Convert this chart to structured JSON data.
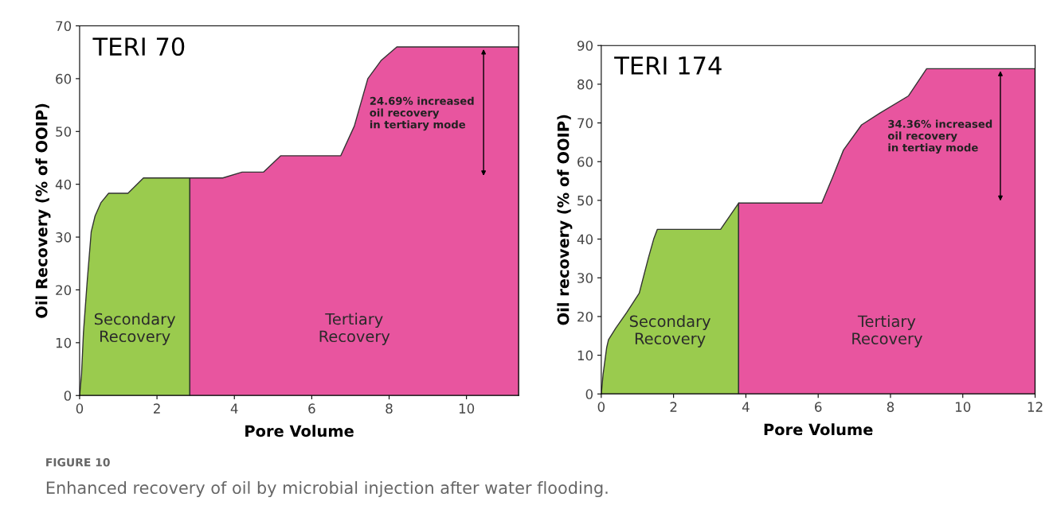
{
  "chart_data": [
    {
      "type": "area",
      "title": "TERI 70",
      "xlabel": "Pore Volume",
      "ylabel": "Oil Recovery (% of OOIP)",
      "xlim": [
        0,
        11.35
      ],
      "ylim": [
        0,
        70
      ],
      "xticks": [
        0,
        2,
        4,
        6,
        8,
        10
      ],
      "yticks": [
        0,
        10,
        20,
        30,
        40,
        50,
        60,
        70
      ],
      "grid": false,
      "series": [
        {
          "name": "Secondary\nRecovery",
          "color": "#9acb4e",
          "x": [
            0,
            0.05,
            0.1,
            0.2,
            0.3,
            0.4,
            0.55,
            0.75,
            1.25,
            1.65,
            2.85
          ],
          "values": [
            0,
            4,
            12,
            22,
            31,
            34,
            36.5,
            38.3,
            38.3,
            41.2,
            41.2
          ]
        },
        {
          "name": "Tertiary\nRecovery",
          "color": "#e8559f",
          "x": [
            2.85,
            3.7,
            4.2,
            4.75,
            5.2,
            6.75,
            7.1,
            7.45,
            7.8,
            8.2,
            11.35
          ],
          "values": [
            41.2,
            41.2,
            42.3,
            42.3,
            45.4,
            45.4,
            51,
            60,
            63.5,
            66,
            66
          ]
        }
      ],
      "annotations": [
        "24.69% increased\noil recovery\nin tertiary mode",
        "FIGURE 10",
        "Enhanced recovery of oil by microbial injection after water flooding."
      ]
    },
    {
      "type": "area",
      "title": "TERI 174",
      "xlabel": "Pore Volume",
      "ylabel": "Oil recovery (% of OOIP)",
      "xlim": [
        0,
        12
      ],
      "ylim": [
        0,
        90
      ],
      "xticks": [
        0,
        2,
        4,
        6,
        8,
        10,
        12
      ],
      "yticks": [
        0,
        10,
        20,
        30,
        40,
        50,
        60,
        70,
        80,
        90
      ],
      "grid": false,
      "series": [
        {
          "name": "Secondary\nRecovery",
          "color": "#9acb4e",
          "x": [
            0,
            0.05,
            0.15,
            0.2,
            0.4,
            0.7,
            1.05,
            1.3,
            1.45,
            1.55,
            3.3,
            3.8
          ],
          "values": [
            0,
            5,
            12,
            14,
            17,
            21,
            26,
            35,
            40,
            42.5,
            42.5,
            49.3
          ]
        },
        {
          "name": "Tertiary\nRecovery",
          "color": "#e8559f",
          "x": [
            3.8,
            6.1,
            6.4,
            6.7,
            7.2,
            7.7,
            8.5,
            9,
            12
          ],
          "values": [
            49.3,
            49.3,
            56,
            63,
            69.5,
            72.5,
            77,
            84,
            84
          ]
        }
      ],
      "annotations": [
        "34.36% increased\noil recovery\nin tertiay mode"
      ]
    }
  ]
}
